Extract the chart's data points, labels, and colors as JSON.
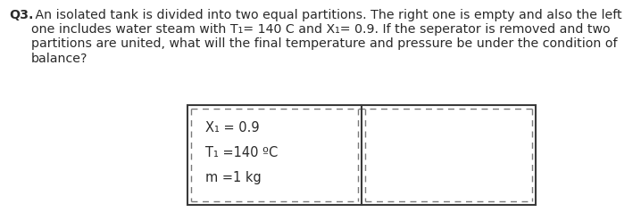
{
  "title_bold": "Q3.",
  "title_text": " An isolated tank is divided into two equal partitions. The right one is empty and also the left\none includes water steam with T₁= 140 C and X₁= 0.9. If the seperator is removed and two\npartitions are united, what will the final temperature and pressure be under the condition of\nbalance?",
  "label_x": "X₁ = 0.9",
  "label_t": "T₁ =140 ºC",
  "label_m": "m =1 kg",
  "bg_color": "#ffffff",
  "text_color": "#2a2a2a",
  "font_size_text": 10.2,
  "font_size_labels": 10.5,
  "outer_solid_color": "#3a3a3a",
  "inner_dash_color": "#7a7a7a",
  "divider_color": "#3a3a3a"
}
